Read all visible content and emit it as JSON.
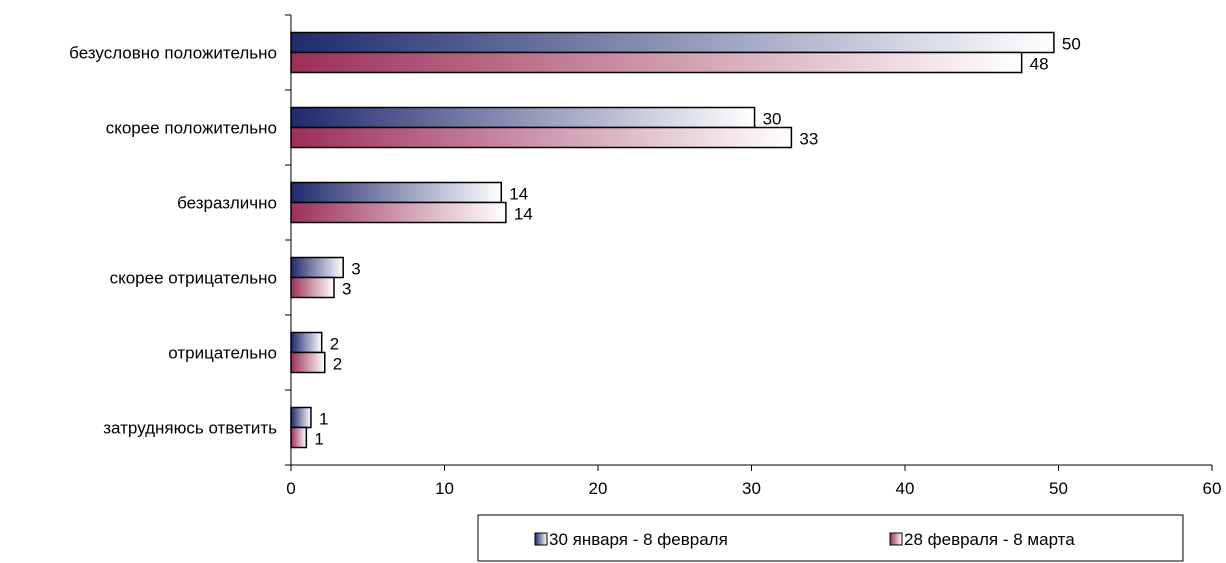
{
  "chart_data": {
    "type": "bar",
    "orientation": "horizontal",
    "categories": [
      "безусловно положительно",
      "скорее положительно",
      "безразлично",
      "скорее отрицательно",
      "отрицательно",
      "затрудняюсь ответить"
    ],
    "series": [
      {
        "name": "30 января - 8 февраля",
        "values": [
          49.7,
          30.2,
          13.7,
          3.4,
          2.0,
          1.3
        ],
        "labels": [
          "50",
          "30",
          "14",
          "3",
          "2",
          "1"
        ],
        "color_dark": "#1f2a6e",
        "color_light": "#ffffff"
      },
      {
        "name": "28 февраля - 8 марта",
        "values": [
          47.6,
          32.6,
          14.0,
          2.8,
          2.2,
          1.0
        ],
        "labels": [
          "48",
          "33",
          "14",
          "3",
          "2",
          "1"
        ],
        "color_dark": "#9c2f5a",
        "color_light": "#ffffff"
      }
    ],
    "xlim": [
      0,
      60
    ],
    "xticks": [
      "0",
      "10",
      "20",
      "30",
      "40",
      "50",
      "60"
    ],
    "legend_position": "bottom",
    "grid": false
  }
}
